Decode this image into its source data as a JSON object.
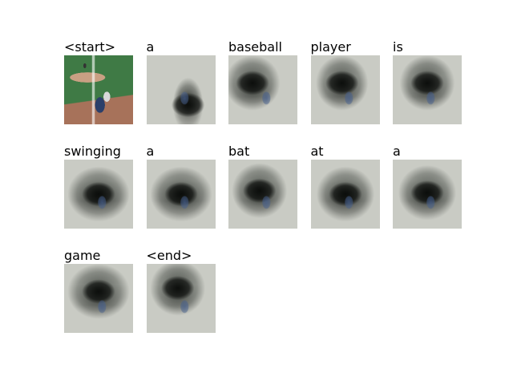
{
  "caption_tokens": [
    {
      "word": "<start>",
      "thumb": "original-photo"
    },
    {
      "word": "a",
      "thumb": "attention-overlay"
    },
    {
      "word": "baseball",
      "thumb": "attention-overlay"
    },
    {
      "word": "player",
      "thumb": "attention-overlay"
    },
    {
      "word": "is",
      "thumb": "attention-overlay"
    },
    {
      "word": "swinging",
      "thumb": "attention-overlay"
    },
    {
      "word": "a",
      "thumb": "attention-overlay"
    },
    {
      "word": "bat",
      "thumb": "attention-overlay"
    },
    {
      "word": "at",
      "thumb": "attention-overlay"
    },
    {
      "word": "a",
      "thumb": "attention-overlay"
    },
    {
      "word": "game",
      "thumb": "attention-overlay"
    },
    {
      "word": "<end>",
      "thumb": "attention-overlay"
    }
  ],
  "colors": {
    "infield_grass": "#3f7a45",
    "dirt": "#a7725a",
    "mound": "#c9a083",
    "overlay_dark": "#141714",
    "overlay_light": "#c9cbc4"
  }
}
